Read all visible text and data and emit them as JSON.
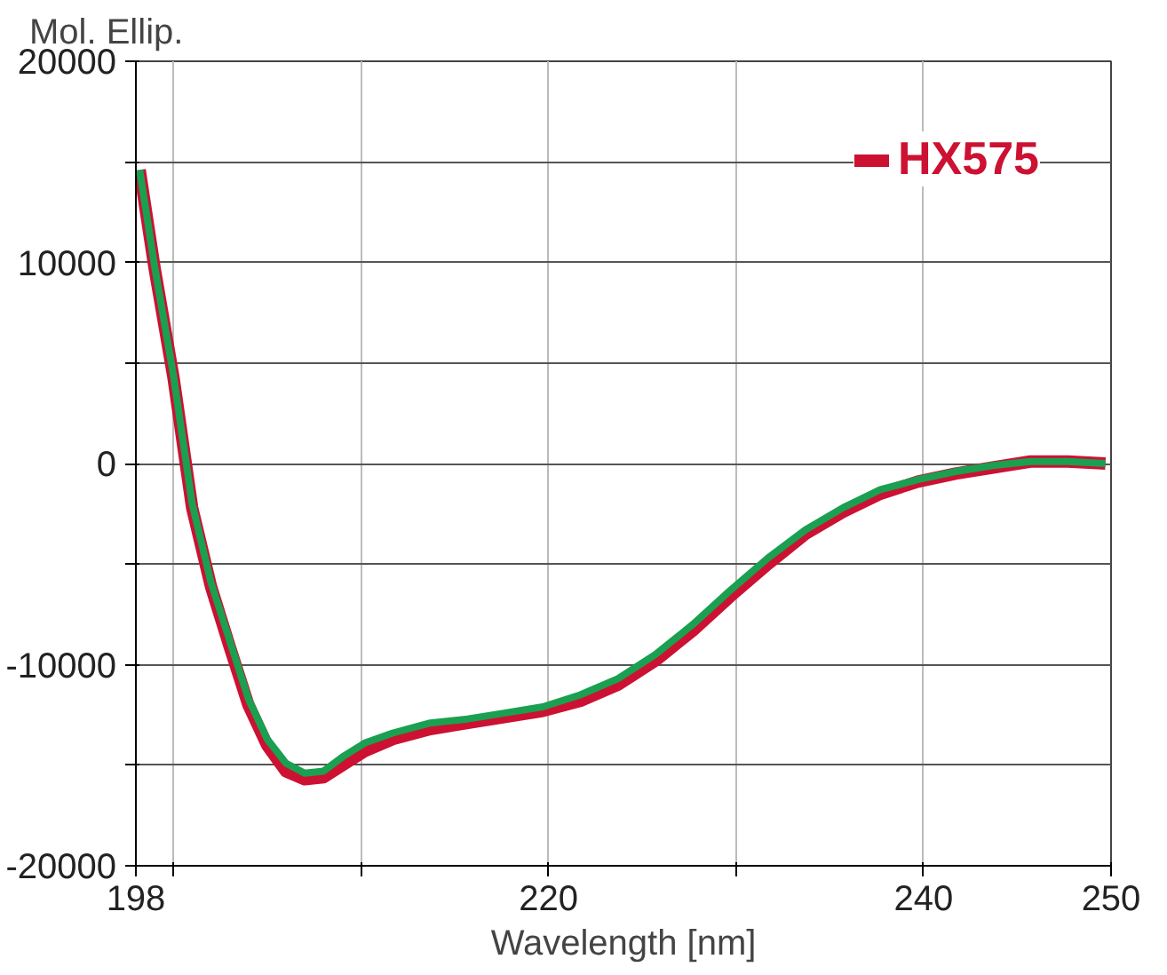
{
  "chart_data": {
    "type": "line",
    "xlabel": "Wavelength [nm]",
    "ylabel": "Mol. Ellip.",
    "xlim": [
      198,
      250
    ],
    "xticks": [
      198,
      {
        "value": 200,
        "label": null
      },
      {
        "value": 210,
        "label": null
      },
      220,
      {
        "value": 230,
        "label": null
      },
      240,
      250
    ],
    "ylim": [
      -20000,
      20000
    ],
    "yticks": [
      -20000,
      {
        "value": -15000,
        "label": null
      },
      -10000,
      {
        "value": -5000,
        "label": null
      },
      0,
      {
        "value": 5000,
        "label": null
      },
      10000,
      {
        "value": 15000,
        "label": null
      },
      20000
    ],
    "grid": true,
    "legend": "top right",
    "series": [
      {
        "name": "HX575",
        "color": "#cc1133",
        "x": [
          198.2,
          199,
          200,
          201,
          202,
          203,
          204,
          205,
          206,
          207,
          208,
          209,
          210.2,
          211.7,
          213.7,
          215.7,
          217.7,
          219.7,
          221.7,
          223.7,
          225.7,
          227.7,
          229.7,
          231.7,
          233.7,
          235.7,
          237.7,
          239.7,
          241.7,
          243.7,
          245.7,
          247.7,
          249.7
        ],
        "values": [
          14600,
          9700,
          4300,
          -2200,
          -6100,
          -9100,
          -12000,
          -14000,
          -15300,
          -15700,
          -15600,
          -15000,
          -14300,
          -13700,
          -13200,
          -12900,
          -12600,
          -12300,
          -11800,
          -11000,
          -9800,
          -8300,
          -6600,
          -5000,
          -3500,
          -2400,
          -1500,
          -900,
          -500,
          -200,
          100,
          100,
          0
        ]
      },
      {
        "color": "#1aa050",
        "x": [
          198.2,
          199,
          200,
          201,
          202,
          203,
          204,
          205,
          206,
          207,
          208,
          209,
          210.2,
          211.7,
          213.7,
          215.7,
          217.7,
          219.7,
          221.7,
          223.7,
          225.7,
          227.7,
          229.7,
          231.7,
          233.7,
          235.7,
          237.7,
          239.7,
          241.7,
          243.7,
          245.7,
          247.7,
          249.7
        ],
        "values": [
          14600,
          9800,
          4400,
          -2000,
          -5900,
          -8800,
          -11700,
          -13700,
          -14900,
          -15400,
          -15300,
          -14600,
          -13900,
          -13400,
          -12900,
          -12700,
          -12400,
          -12100,
          -11500,
          -10700,
          -9500,
          -8000,
          -6300,
          -4700,
          -3300,
          -2200,
          -1300,
          -800,
          -400,
          -100,
          100,
          100,
          0
        ]
      }
    ]
  }
}
